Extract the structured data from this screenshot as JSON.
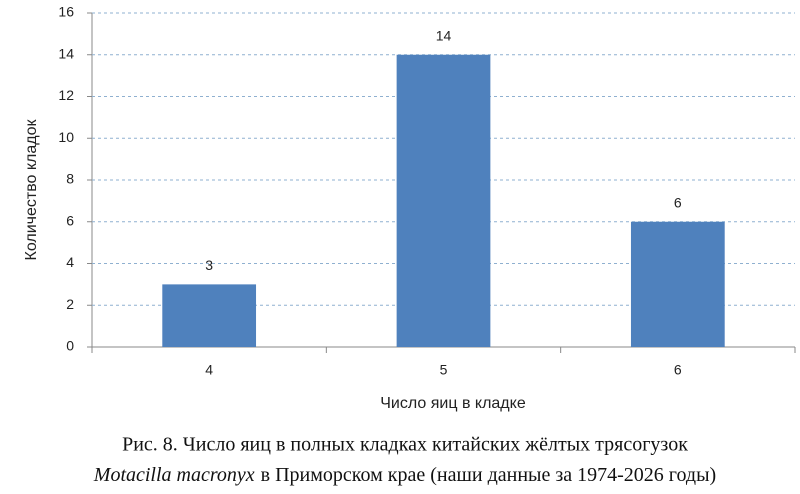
{
  "chart_data": {
    "type": "bar",
    "x_label": "Число яиц в кладке",
    "y_label": "Количество кладок",
    "categories": [
      "4",
      "5",
      "6"
    ],
    "values": [
      3,
      14,
      6
    ],
    "color": "#4f81bd",
    "ylim": [
      0,
      16
    ],
    "yticks": [
      0,
      2,
      4,
      6,
      8,
      10,
      12,
      14,
      16
    ],
    "grid": true,
    "caption": [
      "Рис. 8. Число яиц в полных кладках китайских жёлтых трясогузок",
      "Motacilla macronyx",
      "в Приморском крае (наши данные за 1974-2026 годы)"
    ]
  }
}
